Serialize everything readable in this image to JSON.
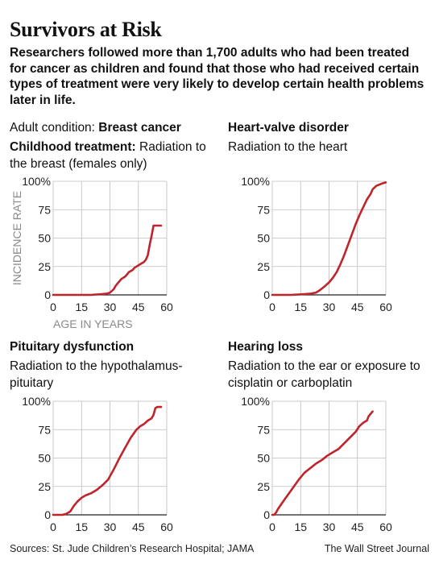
{
  "title": "Survivors at Risk",
  "intro": "Researchers followed more than 1,700 adults who had been treated for cancer as children and found that those who had received certain types of treatment were very likely to develop certain health problems later in life.",
  "labels": {
    "condition_prefix": "Adult condition: ",
    "treatment_prefix": "Childhood treatment: "
  },
  "source": "Sources: St. Jude Children’s Research Hospital; JAMA",
  "publisher": "The Wall Street Journal",
  "line_color": "#c0242a",
  "chart_data": [
    {
      "type": "line",
      "title": "Breast cancer",
      "subtitle": "Radiation to the breast (females only)",
      "xlabel": "AGE IN YEARS",
      "ylabel": "INCIDENCE RATE",
      "xlim": [
        0,
        60
      ],
      "ylim": [
        0,
        100
      ],
      "x_ticks": [
        "0",
        "15",
        "30",
        "45",
        "60"
      ],
      "y_ticks": [
        "0",
        "25",
        "50",
        "75",
        "100%"
      ],
      "series": [
        {
          "x": [
            0,
            20,
            28,
            30,
            32,
            33,
            35,
            36,
            37,
            38,
            39,
            40,
            41,
            42,
            43,
            44,
            45,
            46,
            47,
            48,
            49,
            50,
            51,
            52,
            53,
            55,
            57
          ],
          "y": [
            0,
            0,
            1,
            2,
            5,
            8,
            12,
            14,
            15,
            16,
            18,
            20,
            21,
            22,
            24,
            25,
            26,
            27,
            28,
            29,
            31,
            35,
            44,
            52,
            61,
            61,
            61
          ]
        }
      ]
    },
    {
      "type": "line",
      "title": "Heart-valve disorder",
      "subtitle": "Radiation to the heart",
      "xlabel": "",
      "ylabel": "",
      "xlim": [
        0,
        60
      ],
      "ylim": [
        0,
        100
      ],
      "x_ticks": [
        "0",
        "15",
        "30",
        "45",
        "60"
      ],
      "y_ticks": [
        "0",
        "25",
        "50",
        "75",
        "100%"
      ],
      "series": [
        {
          "x": [
            0,
            10,
            20,
            23,
            25,
            28,
            30,
            32,
            34,
            36,
            38,
            40,
            42,
            44,
            46,
            48,
            50,
            52,
            53,
            55,
            58,
            60
          ],
          "y": [
            0,
            0,
            1,
            2,
            4,
            8,
            11,
            15,
            20,
            27,
            35,
            44,
            53,
            62,
            70,
            77,
            84,
            89,
            93,
            96,
            98,
            99
          ]
        }
      ]
    },
    {
      "type": "line",
      "title": "Pituitary dysfunction",
      "subtitle": "Radiation to the hypothalamus-pituitary",
      "xlabel": "",
      "ylabel": "",
      "xlim": [
        0,
        60
      ],
      "ylim": [
        0,
        100
      ],
      "x_ticks": [
        "0",
        "15",
        "30",
        "45",
        "60"
      ],
      "y_ticks": [
        "0",
        "25",
        "50",
        "75",
        "100%"
      ],
      "series": [
        {
          "x": [
            0,
            5,
            7,
            9,
            11,
            13,
            15,
            17,
            20,
            23,
            26,
            29,
            32,
            35,
            38,
            41,
            44,
            46,
            48,
            50,
            52,
            53,
            54,
            55,
            57
          ],
          "y": [
            0,
            0,
            1,
            3,
            8,
            12,
            15,
            17,
            19,
            22,
            26,
            31,
            40,
            50,
            59,
            68,
            75,
            78,
            80,
            83,
            85,
            88,
            94,
            95,
            95
          ]
        }
      ]
    },
    {
      "type": "line",
      "title": "Hearing loss",
      "subtitle": "Radiation to the ear or exposure to cisplatin or carboplatin",
      "xlabel": "",
      "ylabel": "",
      "xlim": [
        0,
        60
      ],
      "ylim": [
        0,
        100
      ],
      "x_ticks": [
        "0",
        "15",
        "30",
        "45",
        "60"
      ],
      "y_ticks": [
        "0",
        "25",
        "50",
        "75",
        "100%"
      ],
      "series": [
        {
          "x": [
            0,
            1,
            2,
            3,
            5,
            8,
            11,
            14,
            17,
            20,
            23,
            26,
            29,
            32,
            35,
            38,
            41,
            44,
            46,
            48,
            50,
            51,
            52,
            53
          ],
          "y": [
            0,
            0,
            2,
            5,
            10,
            17,
            24,
            31,
            37,
            41,
            45,
            48,
            52,
            55,
            58,
            63,
            68,
            73,
            78,
            81,
            83,
            87,
            89,
            91
          ]
        }
      ]
    }
  ]
}
